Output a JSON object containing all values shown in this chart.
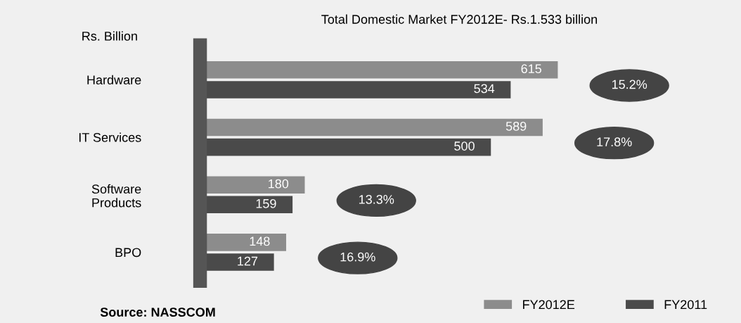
{
  "chart_data": {
    "type": "bar",
    "orientation": "horizontal",
    "title": "Total Domestic Market FY2012E- Rs.1.533 billion",
    "ylabel": "Rs. Billion",
    "categories": [
      "Hardware",
      "IT Services",
      "Software\nProducts",
      "BPO"
    ],
    "series": [
      {
        "name": "FY2012E",
        "color": "#8c8c8c",
        "values": [
          615,
          589,
          180,
          148
        ]
      },
      {
        "name": "FY2011",
        "color": "#4a4a4a",
        "values": [
          534,
          500,
          159,
          127
        ]
      }
    ],
    "data_labels": true,
    "legend": "bottom right",
    "grid": false,
    "annotations": [
      "15.2%",
      "17.8%",
      "13.3%",
      "16.9%",
      "Source: NASSCOM"
    ]
  }
}
